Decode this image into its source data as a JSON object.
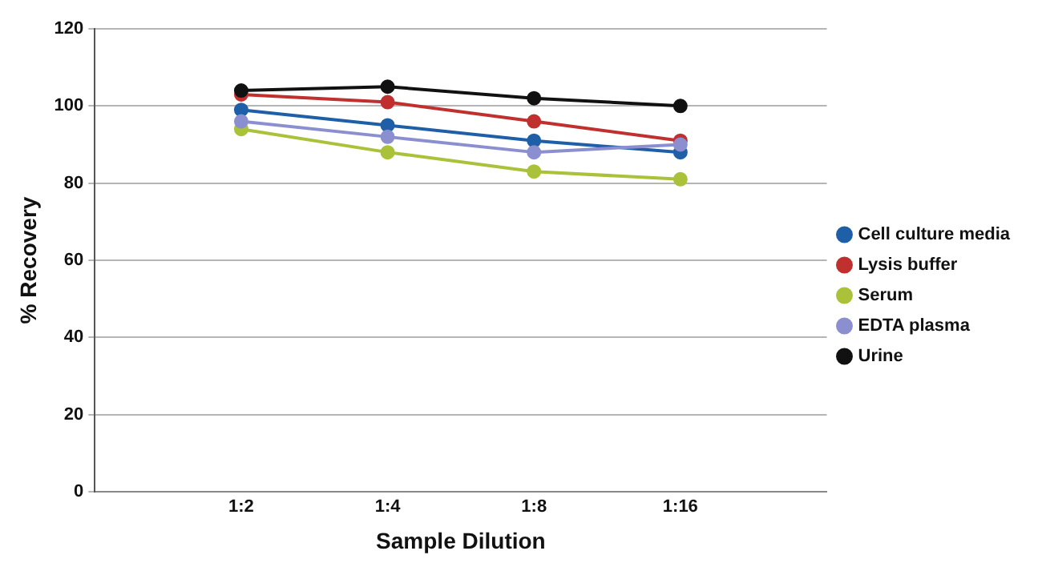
{
  "chart_data": {
    "type": "line",
    "xlabel": "Sample Dilution",
    "ylabel": "% Recovery",
    "categories": [
      "1:2",
      "1:4",
      "1:8",
      "1:16"
    ],
    "series": [
      {
        "name": "Cell culture media",
        "color": "#1f5fa8",
        "values": [
          99,
          95,
          91,
          88
        ]
      },
      {
        "name": "Lysis buffer",
        "color": "#c0302e",
        "values": [
          103,
          101,
          96,
          91
        ]
      },
      {
        "name": "Serum",
        "color": "#a9c23a",
        "values": [
          94,
          88,
          83,
          81
        ]
      },
      {
        "name": "EDTA plasma",
        "color": "#8b8fd0",
        "values": [
          96,
          92,
          88,
          90
        ]
      },
      {
        "name": "Urine",
        "color": "#111111",
        "values": [
          104,
          105,
          102,
          100
        ]
      }
    ],
    "ylim": [
      0,
      120
    ],
    "yticks": [
      0,
      20,
      40,
      60,
      80,
      100,
      120
    ],
    "grid": "y",
    "legend": "right",
    "marker": "circle",
    "line_style": "solid"
  }
}
